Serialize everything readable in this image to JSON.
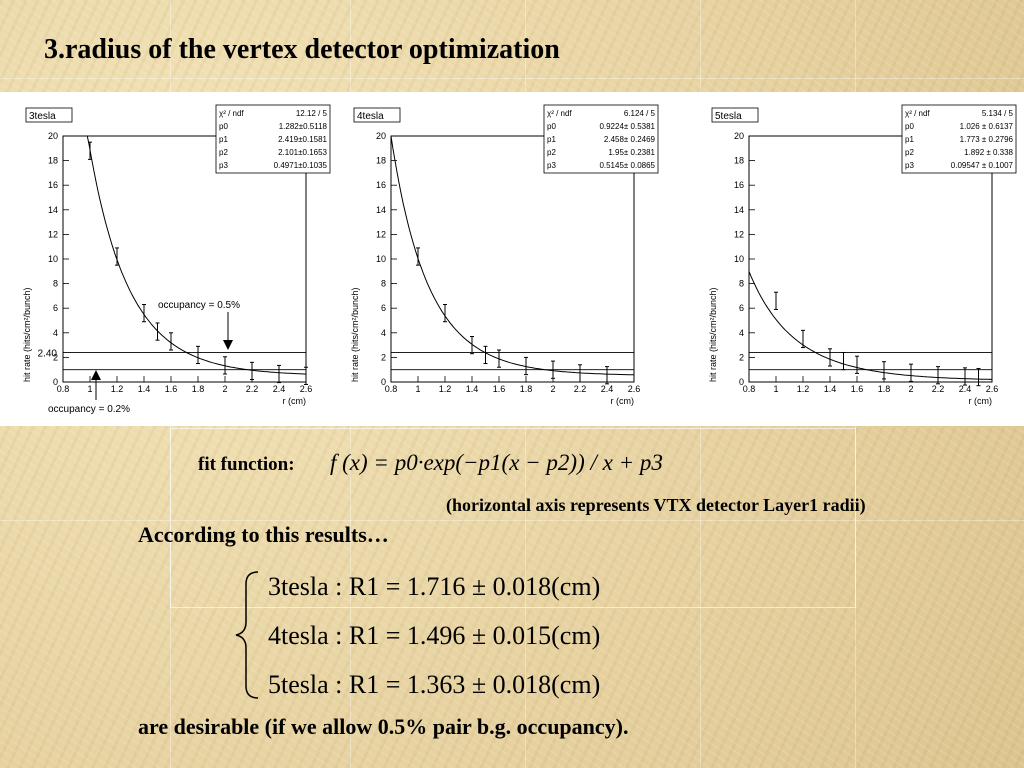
{
  "title": "3.radius of the vertex detector optimization",
  "fit_label": "fit function:",
  "fit_equation": "f (x) = p0·exp(−p1(x − p2)) / x + p3",
  "axis_note": "(horizontal axis represents VTX detector Layer1 radii)",
  "according": "According to this results…",
  "results": [
    "3tesla : R1 = 1.716 ± 0.018(cm)",
    "4tesla : R1 = 1.496 ± 0.015(cm)",
    "5tesla : R1 = 1.363 ± 0.018(cm)"
  ],
  "conclusion": "are desirable (if we allow 0.5% pair b.g. occupancy).",
  "chart_data": [
    {
      "type": "scatter",
      "title": "3tesla",
      "xlabel": "r (cm)",
      "ylabel": "hit rate (hits/cm²/bunch)",
      "xlim": [
        0.8,
        2.6
      ],
      "ylim": [
        0,
        20
      ],
      "xticks": [
        "0.8",
        "1",
        "1.2",
        "1.4",
        "1.6",
        "1.8",
        "2",
        "2.2",
        "2.4",
        "2.6"
      ],
      "yticks": [
        "0",
        "2",
        "4",
        "6",
        "8",
        "10",
        "12",
        "14",
        "16",
        "18",
        "20"
      ],
      "points": [
        [
          1.0,
          18.8
        ],
        [
          1.2,
          10.2
        ],
        [
          1.4,
          5.6
        ],
        [
          1.5,
          4.1
        ],
        [
          1.6,
          3.3
        ],
        [
          1.8,
          2.2
        ],
        [
          2.0,
          1.35
        ],
        [
          2.2,
          0.9
        ],
        [
          2.4,
          0.65
        ],
        [
          2.6,
          0.5
        ]
      ],
      "fit": {
        "p0": 1.282,
        "p1": 2.419,
        "p2": 2.101,
        "p3": 0.4971
      },
      "stats": [
        [
          "χ² / ndf",
          "12.12 / 5"
        ],
        [
          "p0",
          "1.282±0.5118"
        ],
        [
          "p1",
          "2.419±0.1581"
        ],
        [
          "p2",
          "2.101±0.1653"
        ],
        [
          "p3",
          "0.4971±0.1035"
        ]
      ],
      "hlines": [
        2.4,
        1.0
      ],
      "extra_labels": {
        "ytick_special": "2.40",
        "annot_top": "occupancy = 0.5%",
        "annot_bottom": "occupancy = 0.2%"
      }
    },
    {
      "type": "scatter",
      "title": "4tesla",
      "xlabel": "r (cm)",
      "ylabel": "hit rate (hits/cm²/bunch)",
      "xlim": [
        0.8,
        2.6
      ],
      "ylim": [
        0,
        20
      ],
      "xticks": [
        "0.8",
        "1",
        "1.2",
        "1.4",
        "1.6",
        "1.8",
        "2",
        "2.2",
        "2.4",
        "2.6"
      ],
      "yticks": [
        "0",
        "2",
        "4",
        "6",
        "8",
        "10",
        "12",
        "14",
        "16",
        "18",
        "20"
      ],
      "points": [
        [
          1.0,
          10.2
        ],
        [
          1.2,
          5.6
        ],
        [
          1.4,
          3.0
        ],
        [
          1.5,
          2.2
        ],
        [
          1.6,
          1.9
        ],
        [
          1.8,
          1.3
        ],
        [
          2.0,
          1.0
        ],
        [
          2.2,
          0.7
        ],
        [
          2.4,
          0.55
        ]
      ],
      "fit": {
        "p0": 0.9224,
        "p1": 2.458,
        "p2": 1.95,
        "p3": 0.5145
      },
      "stats": [
        [
          "χ² / ndf",
          "6.124 / 5"
        ],
        [
          "p0",
          "0.9224± 0.5381"
        ],
        [
          "p1",
          "2.458± 0.2469"
        ],
        [
          "p2",
          "1.95± 0.2381"
        ],
        [
          "p3",
          "0.5145± 0.0865"
        ]
      ],
      "hlines": [
        2.4,
        1.0
      ]
    },
    {
      "type": "scatter",
      "title": "5tesla",
      "xlabel": "r (cm)",
      "ylabel": "hit rate (hits/cm²/bunch)",
      "xlim": [
        0.8,
        2.6
      ],
      "ylim": [
        0,
        20
      ],
      "xticks": [
        "0.8",
        "1",
        "1.2",
        "1.4",
        "1.6",
        "1.8",
        "2",
        "2.2",
        "2.4",
        "2.6"
      ],
      "yticks": [
        "0",
        "2",
        "4",
        "6",
        "8",
        "10",
        "12",
        "14",
        "16",
        "18",
        "20"
      ],
      "points": [
        [
          1.0,
          6.6
        ],
        [
          1.2,
          3.5
        ],
        [
          1.4,
          2.0
        ],
        [
          1.5,
          1.7
        ],
        [
          1.6,
          1.4
        ],
        [
          1.8,
          0.95
        ],
        [
          2.0,
          0.75
        ],
        [
          2.2,
          0.55
        ],
        [
          2.4,
          0.45
        ],
        [
          2.5,
          0.4
        ]
      ],
      "fit": {
        "p0": 1.026,
        "p1": 1.773,
        "p2": 1.892,
        "p3": 0.09547
      },
      "stats": [
        [
          "χ² / ndf",
          "5.134 / 5"
        ],
        [
          "p0",
          "1.026 ± 0.6137"
        ],
        [
          "p1",
          "1.773 ± 0.2796"
        ],
        [
          "p2",
          "1.892 ± 0.338"
        ],
        [
          "p3",
          "0.09547 ± 0.1007"
        ]
      ],
      "hlines": [
        2.4,
        1.0
      ]
    }
  ]
}
